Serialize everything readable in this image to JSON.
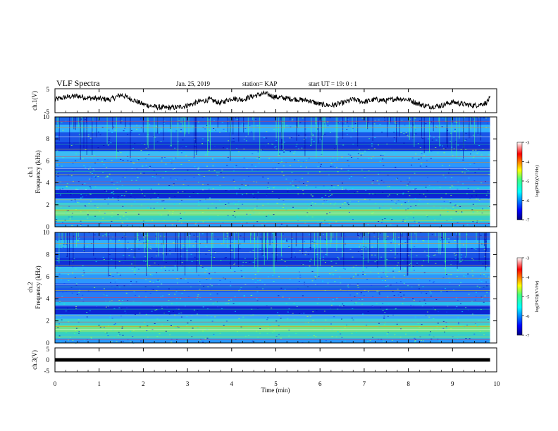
{
  "header": {
    "title": "VLF Spectra",
    "date": "Jan. 25, 2019",
    "station": "station= KAP",
    "start": "start  UT =   19: 0  : 1"
  },
  "chart_data": [
    {
      "type": "line",
      "ylabel": "ch.1(V)",
      "xlim": [
        0,
        10
      ],
      "ylim": [
        -5,
        5
      ],
      "yticks": [
        "5",
        "-5"
      ],
      "series": [
        {
          "x": [
            0,
            0.25,
            0.5,
            0.75,
            1.0,
            1.25,
            1.5,
            1.75,
            2.0,
            2.25,
            2.5,
            2.75,
            3.0,
            3.25,
            3.5,
            3.75,
            4.0,
            4.25,
            4.5,
            4.75,
            5.0,
            5.25,
            5.5,
            5.75,
            6.0,
            6.25,
            6.5,
            6.75,
            7.0,
            7.25,
            7.5,
            7.75,
            8.0,
            8.25,
            8.5,
            8.75,
            9.0,
            9.25,
            9.5,
            9.75,
            9.85
          ],
          "y": [
            0.5,
            1.5,
            2.0,
            1.2,
            0.8,
            0.5,
            2.5,
            0.5,
            -1.5,
            -2.5,
            -3.0,
            -2.8,
            -2.0,
            -0.5,
            0.5,
            -1.0,
            1.0,
            0.5,
            2.0,
            3.0,
            1.5,
            1.0,
            0.5,
            0.0,
            -1.5,
            -2.0,
            -1.0,
            0.5,
            -0.5,
            0.5,
            0.0,
            1.0,
            0.5,
            -1.5,
            -2.5,
            -2.0,
            -0.5,
            -1.5,
            -2.0,
            -1.0,
            1.0
          ]
        }
      ]
    },
    {
      "type": "heatmap",
      "ylabel_line1": "ch.1",
      "ylabel_line2": "Frequency  (kHz)",
      "xlim": [
        0,
        10
      ],
      "ylim": [
        0,
        10
      ],
      "yticks": [
        "0",
        "2",
        "4",
        "6",
        "8",
        "10"
      ],
      "colorbar": {
        "label": "log(PSD)(V²/Hz)",
        "ticks": [
          "-3",
          "-4",
          "-5",
          "-6",
          "-7"
        ],
        "range": [
          -7,
          -3
        ]
      }
    },
    {
      "type": "heatmap",
      "ylabel_line1": "ch.2",
      "ylabel_line2": "Frequency  (kHz)",
      "xlim": [
        0,
        10
      ],
      "ylim": [
        0,
        10
      ],
      "yticks": [
        "0",
        "2",
        "4",
        "6",
        "8",
        "10"
      ],
      "colorbar": {
        "label": "log(PSD)(V²/Hz)",
        "ticks": [
          "-3",
          "-4",
          "-5",
          "-6",
          "-7"
        ],
        "range": [
          -7,
          -3
        ]
      }
    },
    {
      "type": "line",
      "ylabel": "ch.3(V)",
      "xlim": [
        0,
        10
      ],
      "ylim": [
        -5,
        5
      ],
      "yticks": [
        "5",
        "0",
        "-5"
      ],
      "series": [
        {
          "x": [
            0,
            9.85
          ],
          "y": [
            0,
            0
          ]
        }
      ]
    }
  ],
  "xaxis": {
    "label": "Time  (min)",
    "ticks": [
      "0",
      "1",
      "2",
      "3",
      "4",
      "5",
      "6",
      "7",
      "8",
      "9",
      "10"
    ]
  }
}
